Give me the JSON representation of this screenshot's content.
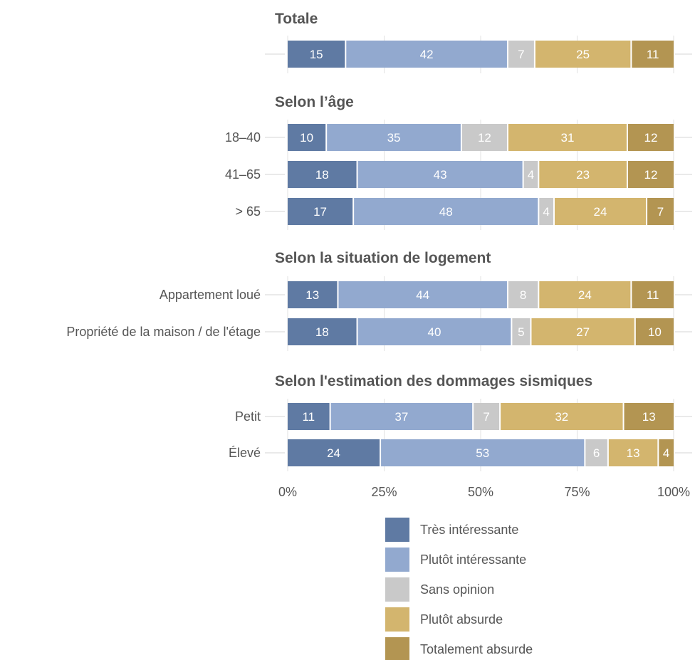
{
  "chart_data": {
    "type": "bar",
    "orientation": "horizontal",
    "stacked": true,
    "normalized_percent": true,
    "xlim": [
      0,
      100
    ],
    "x_ticks": [
      "0%",
      "25%",
      "50%",
      "75%",
      "100%"
    ],
    "legend_position": "bottom",
    "series": [
      {
        "name": "Très intéressante",
        "color": "#5f7aa3"
      },
      {
        "name": "Plutôt intéressante",
        "color": "#92a9cf"
      },
      {
        "name": "Sans opinion",
        "color": "#c9c9c9"
      },
      {
        "name": "Plutôt absurde",
        "color": "#d3b56e"
      },
      {
        "name": "Totalement absurde",
        "color": "#b39552"
      }
    ],
    "groups": [
      {
        "title": "Totale",
        "rows": [
          {
            "label": "",
            "values": [
              15,
              42,
              7,
              25,
              11
            ]
          }
        ]
      },
      {
        "title": "Selon l’âge",
        "rows": [
          {
            "label": "18–40",
            "values": [
              10,
              35,
              12,
              31,
              12
            ]
          },
          {
            "label": "41–65",
            "values": [
              18,
              43,
              4,
              23,
              12
            ]
          },
          {
            "label": "> 65",
            "values": [
              17,
              48,
              4,
              24,
              7
            ]
          }
        ]
      },
      {
        "title": "Selon la situation de logement",
        "rows": [
          {
            "label": "Appartement loué",
            "values": [
              13,
              44,
              8,
              24,
              11
            ]
          },
          {
            "label": "Propriété de la maison / de l'étage",
            "values": [
              18,
              40,
              5,
              27,
              10
            ]
          }
        ]
      },
      {
        "title": "Selon l'estimation des dommages sismiques",
        "rows": [
          {
            "label": "Petit",
            "values": [
              11,
              37,
              7,
              32,
              13
            ]
          },
          {
            "label": "Élevé",
            "values": [
              24,
              53,
              6,
              13,
              4
            ]
          }
        ]
      }
    ]
  }
}
